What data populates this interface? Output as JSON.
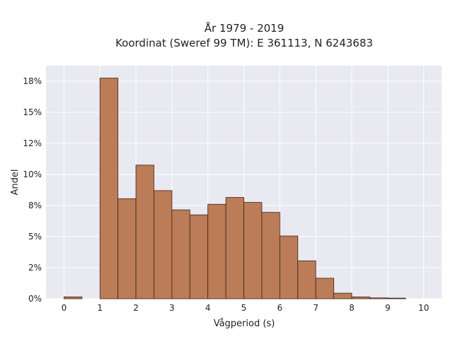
{
  "chart_data": {
    "type": "bar",
    "title_lines": [
      "År 1979 - 2019",
      "Koordinat (Sweref 99 TM): E 361113, N 6243683"
    ],
    "xlabel": "Vågperiod (s)",
    "ylabel": "Andel",
    "xlim": [
      -0.5,
      10.5
    ],
    "ylim": [
      0,
      0.1875
    ],
    "x_ticks": [
      0,
      1,
      2,
      3,
      4,
      5,
      6,
      7,
      8,
      9,
      10
    ],
    "x_tick_labels": [
      "0",
      "1",
      "2",
      "3",
      "4",
      "5",
      "6",
      "7",
      "8",
      "9",
      "10"
    ],
    "y_ticks": [
      0,
      0.025,
      0.05,
      0.075,
      0.1,
      0.125,
      0.15,
      0.175
    ],
    "y_tick_labels": [
      "0%",
      "2%",
      "5%",
      "8%",
      "10%",
      "12%",
      "15%",
      "18%"
    ],
    "bin_width": 0.5,
    "bin_starts": [
      0,
      1,
      1.5,
      2,
      2.5,
      3,
      3.5,
      4,
      4.5,
      5,
      5.5,
      6,
      6.5,
      7,
      7.5,
      8,
      8.5,
      9
    ],
    "values": [
      0.0015,
      0.1775,
      0.0805,
      0.1075,
      0.087,
      0.0715,
      0.0675,
      0.076,
      0.0815,
      0.0775,
      0.0695,
      0.0505,
      0.0305,
      0.0165,
      0.0045,
      0.0015,
      0.0007,
      0.0005
    ],
    "grid": true,
    "colors": {
      "bar_fill": "#bb7c57",
      "bar_edge": "#3d2418",
      "plot_bg": "#e9e9f1",
      "grid": "#ffffff"
    }
  }
}
